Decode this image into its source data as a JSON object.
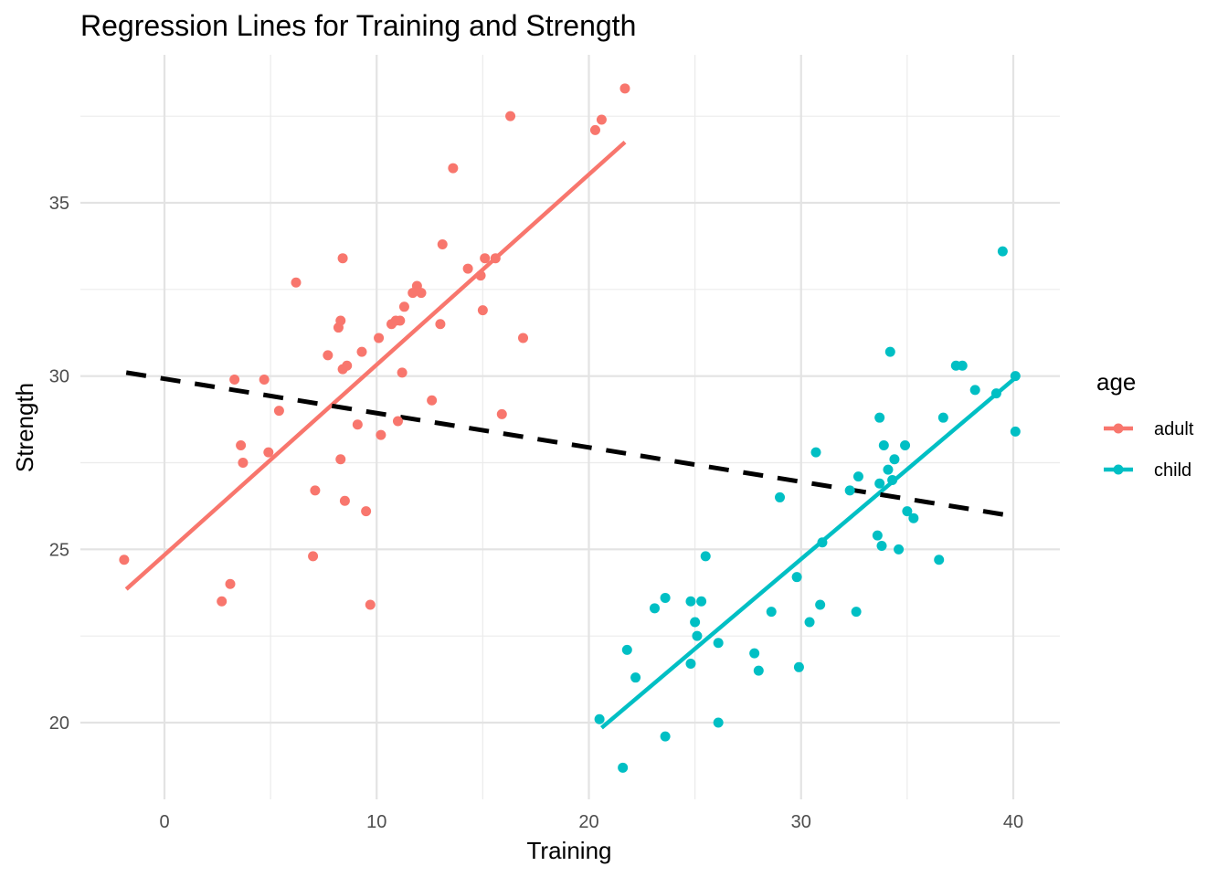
{
  "chart_data": {
    "type": "scatter",
    "title": "Regression Lines for Training and Strength",
    "xlabel": "Training",
    "ylabel": "Strength",
    "xlim": [
      -2.5,
      41.5
    ],
    "ylim": [
      18,
      38.5
    ],
    "x_ticks": [
      0,
      10,
      20,
      30,
      40
    ],
    "y_ticks": [
      20,
      25,
      30,
      35
    ],
    "grid": true,
    "legend": {
      "title": "age",
      "position": "right"
    },
    "series": [
      {
        "name": "adult",
        "color": "#F8766D",
        "points": [
          [
            -1.9,
            24.7
          ],
          [
            2.7,
            23.5
          ],
          [
            3.1,
            24.0
          ],
          [
            3.3,
            29.9
          ],
          [
            3.6,
            28.0
          ],
          [
            3.7,
            27.5
          ],
          [
            4.7,
            29.9
          ],
          [
            4.9,
            27.8
          ],
          [
            5.4,
            29.0
          ],
          [
            6.2,
            32.7
          ],
          [
            7.0,
            24.8
          ],
          [
            7.1,
            26.7
          ],
          [
            7.7,
            30.6
          ],
          [
            8.2,
            31.4
          ],
          [
            8.3,
            31.6
          ],
          [
            8.3,
            27.6
          ],
          [
            8.4,
            30.2
          ],
          [
            8.4,
            33.4
          ],
          [
            8.5,
            26.4
          ],
          [
            8.6,
            30.3
          ],
          [
            9.1,
            28.6
          ],
          [
            9.3,
            30.7
          ],
          [
            9.5,
            26.1
          ],
          [
            9.7,
            23.4
          ],
          [
            10.1,
            31.1
          ],
          [
            10.2,
            28.3
          ],
          [
            10.7,
            31.5
          ],
          [
            10.9,
            31.6
          ],
          [
            11.0,
            28.7
          ],
          [
            11.1,
            31.6
          ],
          [
            11.2,
            30.1
          ],
          [
            11.3,
            32.0
          ],
          [
            11.7,
            32.4
          ],
          [
            11.9,
            32.6
          ],
          [
            12.1,
            32.4
          ],
          [
            12.6,
            29.3
          ],
          [
            13.0,
            31.5
          ],
          [
            13.1,
            33.8
          ],
          [
            13.6,
            36.0
          ],
          [
            14.3,
            33.1
          ],
          [
            14.9,
            32.9
          ],
          [
            15.0,
            31.9
          ],
          [
            15.1,
            33.4
          ],
          [
            15.6,
            33.4
          ],
          [
            15.9,
            28.9
          ],
          [
            16.3,
            37.5
          ],
          [
            16.9,
            31.1
          ],
          [
            20.3,
            37.1
          ],
          [
            20.6,
            37.4
          ],
          [
            21.7,
            38.3
          ]
        ],
        "regression": {
          "x": [
            -1.8,
            21.7
          ],
          "y": [
            23.85,
            36.75
          ]
        }
      },
      {
        "name": "child",
        "color": "#00BFC4",
        "points": [
          [
            20.5,
            20.1
          ],
          [
            21.6,
            18.7
          ],
          [
            21.8,
            22.1
          ],
          [
            22.2,
            21.3
          ],
          [
            23.1,
            23.3
          ],
          [
            23.6,
            19.6
          ],
          [
            23.6,
            23.6
          ],
          [
            24.8,
            23.5
          ],
          [
            24.8,
            21.7
          ],
          [
            25.0,
            22.9
          ],
          [
            25.1,
            22.5
          ],
          [
            25.3,
            23.5
          ],
          [
            25.5,
            24.8
          ],
          [
            26.1,
            22.3
          ],
          [
            26.1,
            20.0
          ],
          [
            27.8,
            22.0
          ],
          [
            28.0,
            21.5
          ],
          [
            28.6,
            23.2
          ],
          [
            29.0,
            26.5
          ],
          [
            29.8,
            24.2
          ],
          [
            29.9,
            21.6
          ],
          [
            30.4,
            22.9
          ],
          [
            30.7,
            27.8
          ],
          [
            30.9,
            23.4
          ],
          [
            31.0,
            25.2
          ],
          [
            32.3,
            26.7
          ],
          [
            32.6,
            23.2
          ],
          [
            32.7,
            27.1
          ],
          [
            33.6,
            25.4
          ],
          [
            33.7,
            28.8
          ],
          [
            33.7,
            26.9
          ],
          [
            33.8,
            25.1
          ],
          [
            33.9,
            28.0
          ],
          [
            34.1,
            27.3
          ],
          [
            34.2,
            30.7
          ],
          [
            34.3,
            27.0
          ],
          [
            34.4,
            27.6
          ],
          [
            34.6,
            25.0
          ],
          [
            34.9,
            28.0
          ],
          [
            35.0,
            26.1
          ],
          [
            35.3,
            25.9
          ],
          [
            36.5,
            24.7
          ],
          [
            36.7,
            28.8
          ],
          [
            37.3,
            30.3
          ],
          [
            37.6,
            30.3
          ],
          [
            38.2,
            29.6
          ],
          [
            39.2,
            29.5
          ],
          [
            39.5,
            33.6
          ],
          [
            40.1,
            30.0
          ],
          [
            40.1,
            28.4
          ]
        ],
        "regression": {
          "x": [
            20.6,
            40.1
          ],
          "y": [
            19.85,
            29.95
          ]
        }
      }
    ],
    "overall_regression": {
      "x": [
        -1.8,
        40.1
      ],
      "y": [
        30.1,
        25.95
      ],
      "style": "dashed",
      "color": "#000000"
    }
  }
}
